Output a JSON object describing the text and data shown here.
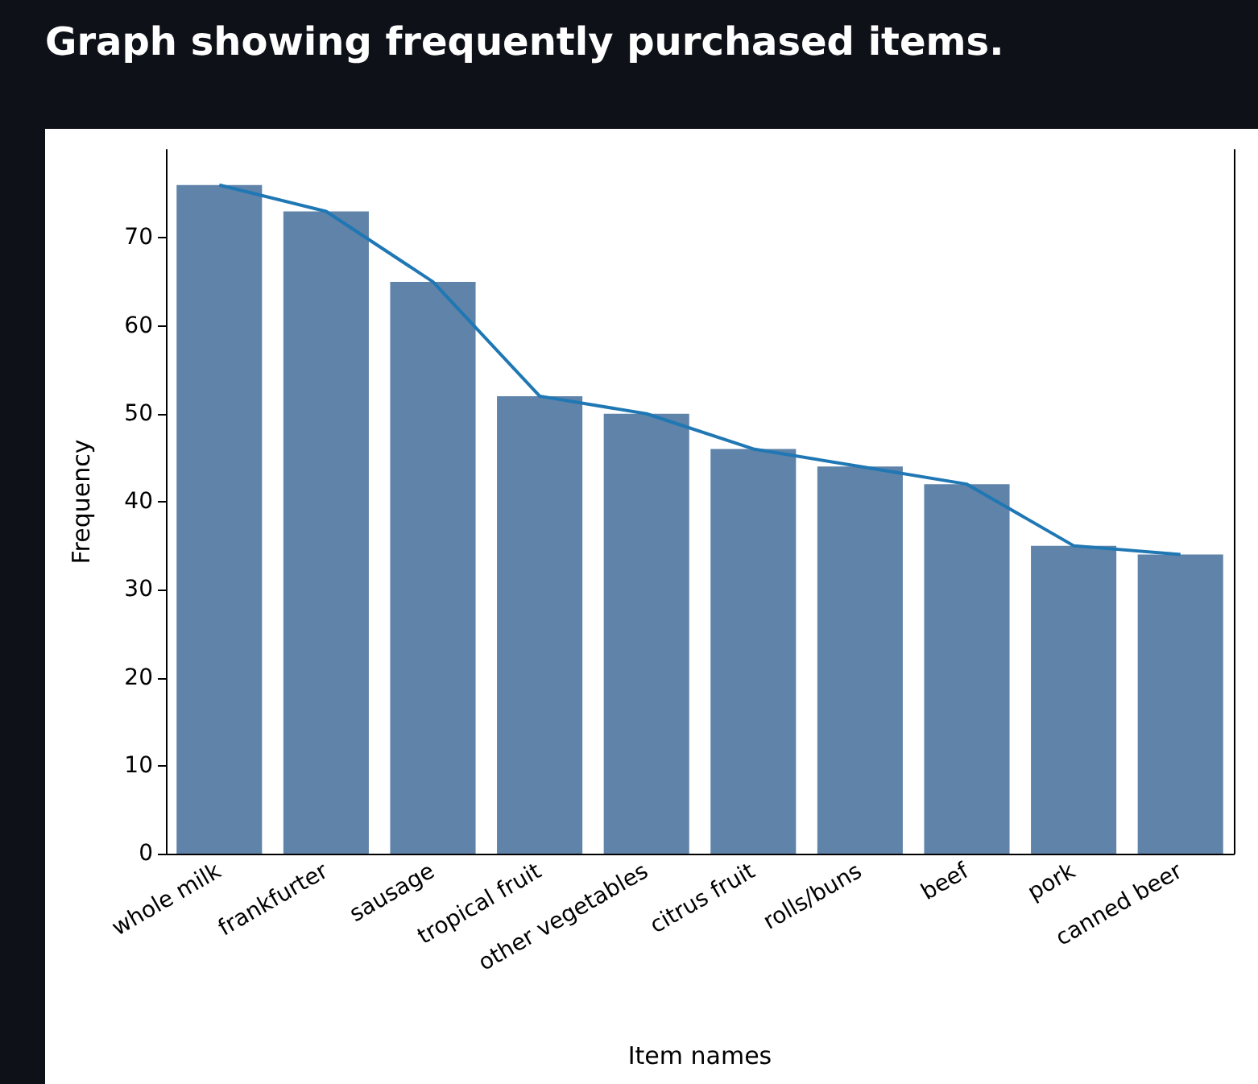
{
  "chart_data": {
    "type": "bar",
    "title": "Graph showing frequently purchased items.",
    "xlabel": "Item names",
    "ylabel": "Frequency",
    "categories": [
      "whole milk",
      "frankfurter",
      "sausage",
      "tropical fruit",
      "other vegetables",
      "citrus fruit",
      "rolls/buns",
      "beef",
      "pork",
      "canned beer"
    ],
    "series": [
      {
        "color": "#5f83a9",
        "values": [
          76,
          73,
          65,
          52,
          50,
          46,
          44,
          42,
          35,
          34
        ]
      },
      {
        "type": "line",
        "color": "#1f77b4",
        "values": [
          76,
          73,
          65,
          52,
          50,
          46,
          44,
          42,
          35,
          34
        ]
      }
    ],
    "ylim": [
      0,
      80
    ],
    "yticks": [
      0,
      10,
      20,
      30,
      40,
      50,
      60,
      70
    ],
    "grid": false,
    "marker": "none",
    "line_style": "solid"
  }
}
